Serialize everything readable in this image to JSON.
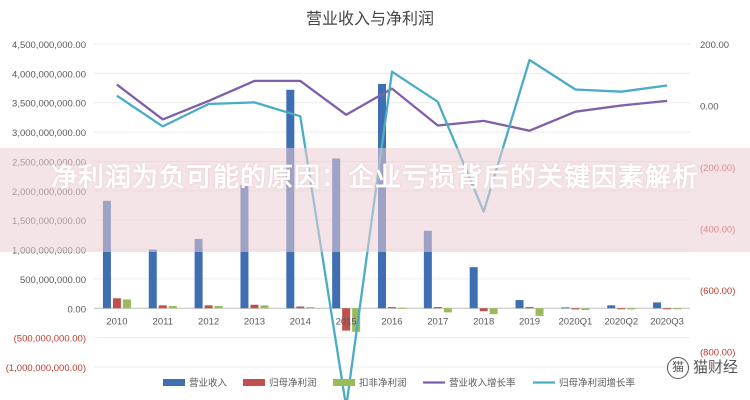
{
  "chart_data": {
    "type": "bar",
    "title": "营业收入与净利润",
    "categories": [
      "2010",
      "2011",
      "2012",
      "2013",
      "2014",
      "2015",
      "2016",
      "2017",
      "2018",
      "2019",
      "2020Q1",
      "2020Q2",
      "2020Q3"
    ],
    "left_axis": {
      "ylim": [
        -1000000000,
        4500000000
      ],
      "ticks": [
        -1000000000,
        -500000000,
        0,
        500000000,
        1000000000,
        1500000000,
        2000000000,
        2500000000,
        3000000000,
        3500000000,
        4000000000,
        4500000000
      ],
      "tick_labels": [
        "(1,000,000,000.00)",
        "(500,000,000.00)",
        "0.00",
        "500,000,000.00",
        "1,000,000,000.00",
        "1,500,000,000.00",
        "2,000,000,000.00",
        "2,500,000,000.00",
        "3,000,000,000.00",
        "3,500,000,000.00",
        "4,000,000,000.00",
        "4,500,000,000.00"
      ]
    },
    "right_axis": {
      "ylim": [
        -850,
        200
      ],
      "ticks": [
        200,
        0,
        -200,
        -400,
        -600,
        -800
      ],
      "tick_labels": [
        "200.00",
        "0.00",
        "(200.00)",
        "(400.00)",
        "(600.00)",
        "(800.00)"
      ]
    },
    "bar_series": [
      {
        "name": "营业收入",
        "color": "#3f6fb3",
        "values": [
          1830000000,
          1000000000,
          1180000000,
          2100000000,
          3720000000,
          2550000000,
          3820000000,
          1320000000,
          700000000,
          140000000,
          15000000,
          50000000,
          100000000
        ]
      },
      {
        "name": "归母净利润",
        "color": "#c0504d",
        "values": [
          170000000,
          50000000,
          50000000,
          60000000,
          30000000,
          -380000000,
          20000000,
          20000000,
          -50000000,
          20000000,
          -20000000,
          -10000000,
          -10000000
        ]
      },
      {
        "name": "扣非净利润",
        "color": "#9bbb59",
        "values": [
          150000000,
          40000000,
          40000000,
          50000000,
          20000000,
          -400000000,
          10000000,
          -70000000,
          -100000000,
          -130000000,
          -30000000,
          -20000000,
          -10000000
        ]
      }
    ],
    "line_series": [
      {
        "name": "营业收入增长率",
        "color": "#7f5fa8",
        "values": [
          68,
          -45,
          15,
          80,
          80,
          -30,
          55,
          -65,
          -50,
          -82,
          -20,
          0,
          15
        ]
      },
      {
        "name": "归母净利润增长率",
        "color": "#4bacc6",
        "values": [
          32,
          -68,
          5,
          10,
          -35,
          -980,
          110,
          12,
          -345,
          148,
          52,
          45,
          65
        ]
      }
    ],
    "grid": true,
    "legend": "bottom"
  },
  "overlay": {
    "text": "净利润为负可能的原因：企业亏损背后的关键因素解析"
  },
  "watermark": {
    "icon": "猫",
    "text": "猫财经"
  }
}
